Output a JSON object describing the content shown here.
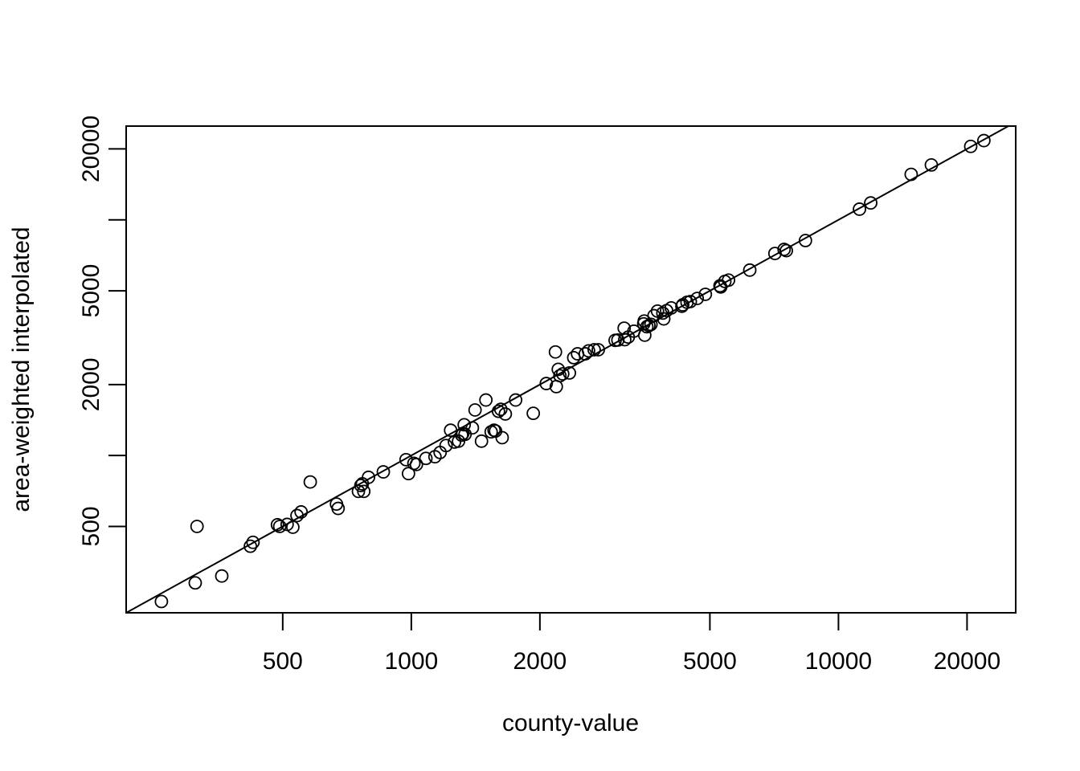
{
  "chart_data": {
    "type": "scatter",
    "title": "",
    "xlabel": "county-value",
    "ylabel": "area-weighted interpolated",
    "x_scale": "log",
    "y_scale": "log",
    "xlim": [
      215,
      26000
    ],
    "ylim": [
      215,
      25000
    ],
    "x_ticks": [
      500,
      1000,
      2000,
      5000,
      10000,
      20000
    ],
    "y_ticks": [
      500,
      1000,
      2000,
      5000,
      10000,
      20000
    ],
    "x_tick_labels": [
      "500",
      "1000",
      "2000",
      "5000",
      "10000",
      "20000"
    ],
    "y_tick_labels": [
      "500",
      "",
      "2000",
      "5000",
      "",
      "20000"
    ],
    "grid": false,
    "legend": "none",
    "reference_line": "y = x",
    "marker": "open-circle",
    "color": "#000000",
    "series": [
      {
        "points": [
          [
            260,
            240
          ],
          [
            312,
            288
          ],
          [
            315,
            500
          ],
          [
            360,
            308
          ],
          [
            420,
            412
          ],
          [
            426,
            428
          ],
          [
            486,
            508
          ],
          [
            492,
            500
          ],
          [
            512,
            510
          ],
          [
            528,
            496
          ],
          [
            540,
            556
          ],
          [
            552,
            576
          ],
          [
            580,
            772
          ],
          [
            668,
            622
          ],
          [
            674,
            596
          ],
          [
            752,
            704
          ],
          [
            762,
            746
          ],
          [
            768,
            758
          ],
          [
            774,
            704
          ],
          [
            794,
            808
          ],
          [
            860,
            852
          ],
          [
            972,
            960
          ],
          [
            985,
            838
          ],
          [
            1014,
            926
          ],
          [
            1028,
            916
          ],
          [
            1082,
            972
          ],
          [
            1136,
            988
          ],
          [
            1168,
            1030
          ],
          [
            1206,
            1102
          ],
          [
            1236,
            1280
          ],
          [
            1262,
            1140
          ],
          [
            1290,
            1150
          ],
          [
            1312,
            1220
          ],
          [
            1320,
            1240
          ],
          [
            1330,
            1350
          ],
          [
            1336,
            1230
          ],
          [
            1390,
            1310
          ],
          [
            1410,
            1560
          ],
          [
            1460,
            1150
          ],
          [
            1495,
            1720
          ],
          [
            1538,
            1260
          ],
          [
            1562,
            1280
          ],
          [
            1575,
            1270
          ],
          [
            1600,
            1540
          ],
          [
            1620,
            1570
          ],
          [
            1632,
            1190
          ],
          [
            1660,
            1500
          ],
          [
            1755,
            1720
          ],
          [
            1930,
            1510
          ],
          [
            2070,
            2020
          ],
          [
            2175,
            2750
          ],
          [
            2185,
            1960
          ],
          [
            2208,
            2320
          ],
          [
            2228,
            2180
          ],
          [
            2262,
            2220
          ],
          [
            2345,
            2240
          ],
          [
            2400,
            2600
          ],
          [
            2450,
            2700
          ],
          [
            2555,
            2700
          ],
          [
            2600,
            2780
          ],
          [
            2680,
            2810
          ],
          [
            2740,
            2810
          ],
          [
            3000,
            3080
          ],
          [
            3045,
            3090
          ],
          [
            3150,
            3470
          ],
          [
            3160,
            3100
          ],
          [
            3220,
            3180
          ],
          [
            3320,
            3370
          ],
          [
            3500,
            3620
          ],
          [
            3510,
            3720
          ],
          [
            3520,
            3240
          ],
          [
            3560,
            3520
          ],
          [
            3600,
            3560
          ],
          [
            3640,
            3600
          ],
          [
            3700,
            3920
          ],
          [
            3770,
            4100
          ],
          [
            3880,
            4020
          ],
          [
            3900,
            3800
          ],
          [
            3960,
            4120
          ],
          [
            4060,
            4230
          ],
          [
            4300,
            4300
          ],
          [
            4320,
            4360
          ],
          [
            4420,
            4470
          ],
          [
            4500,
            4500
          ],
          [
            4670,
            4640
          ],
          [
            4880,
            4830
          ],
          [
            5280,
            5250
          ],
          [
            5300,
            5190
          ],
          [
            5420,
            5480
          ],
          [
            5530,
            5550
          ],
          [
            6200,
            6120
          ],
          [
            7100,
            7200
          ],
          [
            7460,
            7490
          ],
          [
            7550,
            7400
          ],
          [
            8370,
            8170
          ],
          [
            11200,
            11100
          ],
          [
            11900,
            11800
          ],
          [
            14800,
            15600
          ],
          [
            16500,
            17100
          ],
          [
            20400,
            20500
          ],
          [
            21900,
            21700
          ]
        ]
      }
    ]
  }
}
